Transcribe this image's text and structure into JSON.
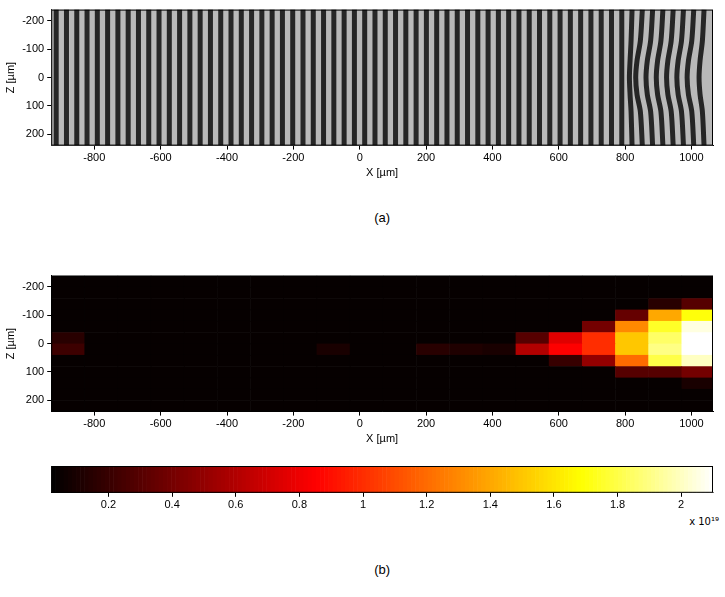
{
  "chart_data": [
    {
      "type": "line",
      "caption": "(a)",
      "x_label": "X [µm]",
      "y_label": "Z [µm]",
      "xlim": [
        -930,
        1065
      ],
      "ylim": [
        240,
        -240
      ],
      "xticks": [
        -800,
        -600,
        -400,
        -200,
        0,
        200,
        400,
        600,
        800,
        1000
      ],
      "yticks": [
        -200,
        -100,
        0,
        100,
        200
      ],
      "grid": false,
      "color": "#262626",
      "fringes": {
        "straight_x": [
          -915,
          -884,
          -853,
          -822,
          -791,
          -760,
          -729,
          -698,
          -667,
          -636,
          -605,
          -574,
          -543,
          -512,
          -481,
          -450,
          -419,
          -388,
          -357,
          -326,
          -295,
          -264,
          -233,
          -202,
          -171,
          -140,
          -109,
          -78,
          -47,
          -16,
          15,
          46,
          77,
          108,
          139,
          170,
          201,
          232,
          263,
          294,
          325,
          356,
          387,
          418,
          449,
          480,
          511,
          542,
          573,
          604,
          635,
          666,
          697,
          728,
          759,
          790
        ],
        "bent": [
          {
            "x": [
              821,
              818,
              815,
              813,
              815,
              818,
              821
            ],
            "z": [
              -240,
              -130,
              -60,
              0,
              60,
              120,
              240
            ]
          },
          {
            "x": [
              852,
              846,
              836,
              832,
              836,
              846,
              852
            ],
            "z": [
              -240,
              -130,
              -60,
              0,
              60,
              120,
              240
            ]
          },
          {
            "x": [
              883,
              877,
              867,
              863,
              867,
              877,
              883
            ],
            "z": [
              -240,
              -130,
              -60,
              0,
              60,
              120,
              240
            ]
          },
          {
            "x": [
              914,
              908,
              898,
              894,
              898,
              908,
              914
            ],
            "z": [
              -240,
              -130,
              -60,
              0,
              60,
              120,
              240
            ]
          },
          {
            "x": [
              945,
              939,
              929,
              925,
              929,
              939,
              945
            ],
            "z": [
              -240,
              -130,
              -60,
              0,
              60,
              120,
              240
            ]
          },
          {
            "x": [
              976,
              970,
              960,
              956,
              960,
              970,
              976
            ],
            "z": [
              -240,
              -130,
              -60,
              0,
              60,
              120,
              240
            ]
          },
          {
            "x": [
              1007,
              1001,
              991,
              987,
              991,
              1001,
              1007
            ],
            "z": [
              -240,
              -130,
              -60,
              0,
              60,
              120,
              240
            ]
          },
          {
            "x": [
              1038,
              1033,
              1026,
              1023,
              1026,
              1033,
              1038
            ],
            "z": [
              -240,
              -130,
              -60,
              0,
              60,
              120,
              240
            ]
          }
        ]
      }
    },
    {
      "type": "heatmap",
      "caption": "(b)",
      "x_label": "X [µm]",
      "y_label": "Z [µm]",
      "xlim": [
        -930,
        1065
      ],
      "ylim": [
        240,
        -240
      ],
      "xticks": [
        -800,
        -600,
        -400,
        -200,
        0,
        200,
        400,
        600,
        800,
        1000
      ],
      "yticks": [
        -200,
        -100,
        0,
        100,
        200
      ],
      "grid": false,
      "x": [
        -880,
        -780,
        -680,
        -580,
        -480,
        -380,
        -280,
        -180,
        -80,
        20,
        120,
        220,
        320,
        420,
        520,
        620,
        720,
        820,
        920,
        1020
      ],
      "z": [
        -220,
        -180,
        -140,
        -100,
        -60,
        -20,
        20,
        60,
        100,
        140,
        180,
        220
      ],
      "cells": [
        [
          0.04,
          0.04,
          0.04,
          0.04,
          0.04,
          0.04,
          0.04,
          0.04,
          0.04,
          0.04,
          0.04,
          0.04,
          0.04,
          0.04,
          0.04,
          0.04,
          0.04,
          0.04,
          0.04,
          0.04
        ],
        [
          0.04,
          0.04,
          0.04,
          0.04,
          0.04,
          0.04,
          0.04,
          0.04,
          0.04,
          0.04,
          0.04,
          0.04,
          0.04,
          0.04,
          0.04,
          0.04,
          0.04,
          0.04,
          0.04,
          0.04
        ],
        [
          0.04,
          0.04,
          0.04,
          0.04,
          0.04,
          0.04,
          0.04,
          0.04,
          0.04,
          0.04,
          0.04,
          0.04,
          0.04,
          0.04,
          0.04,
          0.04,
          0.04,
          0.04,
          0.15,
          0.3
        ],
        [
          0.04,
          0.04,
          0.04,
          0.04,
          0.04,
          0.04,
          0.04,
          0.04,
          0.04,
          0.04,
          0.04,
          0.04,
          0.04,
          0.04,
          0.04,
          0.04,
          0.04,
          0.35,
          1.4,
          1.7
        ],
        [
          0.04,
          0.04,
          0.04,
          0.04,
          0.04,
          0.04,
          0.04,
          0.04,
          0.04,
          0.04,
          0.04,
          0.04,
          0.04,
          0.04,
          0.04,
          0.04,
          0.4,
          1.3,
          1.75,
          2.05
        ],
        [
          0.15,
          0.04,
          0.04,
          0.04,
          0.04,
          0.04,
          0.04,
          0.04,
          0.04,
          0.04,
          0.04,
          0.04,
          0.04,
          0.04,
          0.3,
          0.75,
          1.0,
          1.5,
          1.85,
          2.1
        ],
        [
          0.22,
          0.04,
          0.04,
          0.04,
          0.04,
          0.04,
          0.04,
          0.04,
          0.1,
          0.04,
          0.04,
          0.15,
          0.12,
          0.1,
          0.6,
          0.85,
          1.0,
          1.5,
          1.9,
          2.1
        ],
        [
          0.04,
          0.04,
          0.04,
          0.04,
          0.04,
          0.04,
          0.04,
          0.04,
          0.04,
          0.04,
          0.04,
          0.04,
          0.04,
          0.04,
          0.04,
          0.2,
          0.5,
          1.2,
          1.8,
          2.0
        ],
        [
          0.04,
          0.04,
          0.04,
          0.04,
          0.04,
          0.04,
          0.04,
          0.04,
          0.04,
          0.04,
          0.04,
          0.04,
          0.04,
          0.04,
          0.04,
          0.04,
          0.04,
          0.3,
          0.3,
          0.4
        ],
        [
          0.04,
          0.04,
          0.04,
          0.04,
          0.04,
          0.04,
          0.04,
          0.04,
          0.04,
          0.04,
          0.04,
          0.04,
          0.04,
          0.04,
          0.04,
          0.04,
          0.04,
          0.04,
          0.04,
          0.1
        ],
        [
          0.04,
          0.04,
          0.04,
          0.04,
          0.04,
          0.04,
          0.04,
          0.04,
          0.04,
          0.04,
          0.04,
          0.04,
          0.04,
          0.04,
          0.04,
          0.04,
          0.04,
          0.04,
          0.04,
          0.04
        ],
        [
          0.04,
          0.04,
          0.04,
          0.04,
          0.04,
          0.04,
          0.04,
          0.04,
          0.04,
          0.04,
          0.04,
          0.04,
          0.04,
          0.04,
          0.04,
          0.04,
          0.04,
          0.04,
          0.04,
          0.04
        ]
      ],
      "colorbar": {
        "range": [
          0.02,
          2.1
        ],
        "ticks": [
          0.2,
          0.4,
          0.6,
          0.8,
          1,
          1.2,
          1.4,
          1.6,
          1.8,
          2
        ],
        "label": "x 10¹⁹"
      }
    }
  ]
}
